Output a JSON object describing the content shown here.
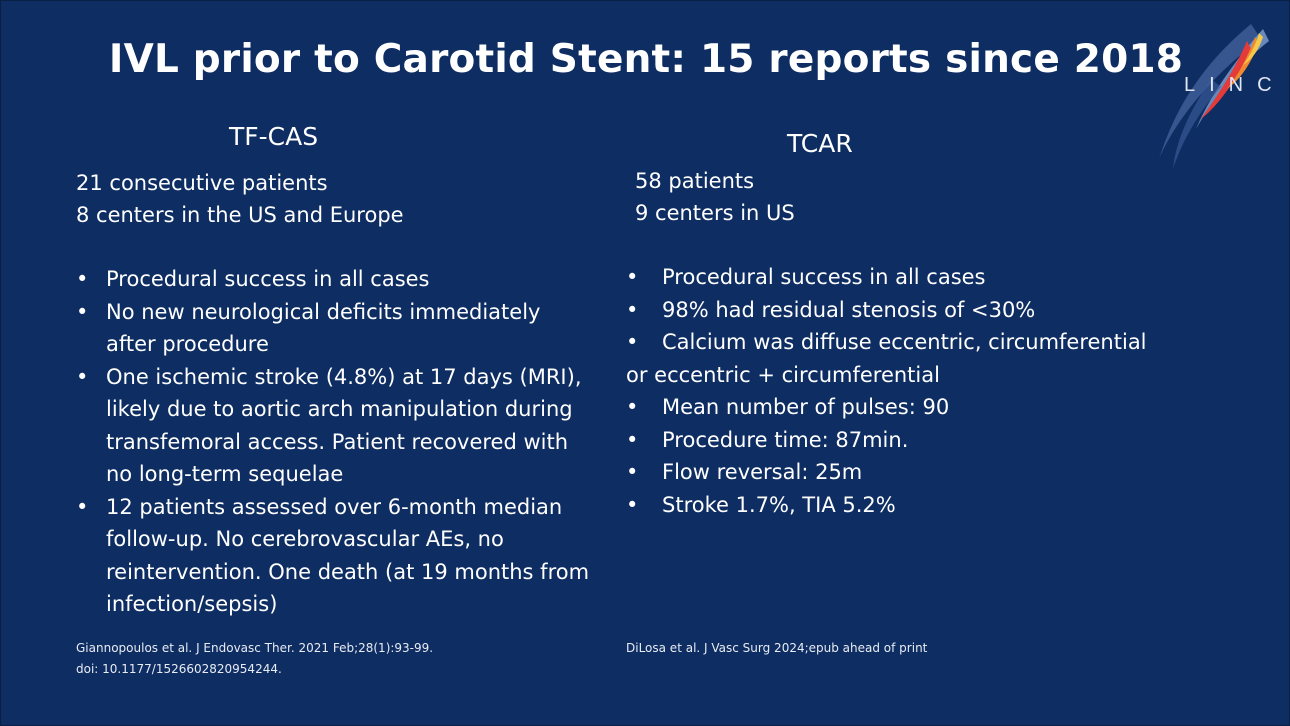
{
  "title": "IVL prior to Carotid Stent: 15 reports since 2018",
  "logo": {
    "text": "LINC",
    "icon": "linc-logo-icon"
  },
  "left": {
    "heading": "TF-CAS",
    "intro": [
      "21 consecutive patients",
      "8 centers in the US and Europe"
    ],
    "bullets": [
      "Procedural success in all cases",
      "No new neurological deficits immediately after procedure",
      "One ischemic stroke (4.8%) at 17 days (MRI), likely due to aortic arch manipulation during transfemoral access. Patient recovered with no long-term sequelae",
      "12 patients assessed over 6-month median follow-up. No cerebrovascular AEs, no reintervention. One death (at 19 months from infection/sepsis)"
    ],
    "reference": [
      "Giannopoulos et al. J Endovasc Ther. 2021 Feb;28(1):93-99.",
      "doi: 10.1177/1526602820954244."
    ]
  },
  "right": {
    "heading": "TCAR",
    "intro": [
      "58 patients",
      "9 centers in US"
    ],
    "bullets": [
      "Procedural success in all cases",
      "98% had residual stenosis of <30%",
      "Calcium was diffuse eccentric, circumferential",
      "Mean number of pulses: 90",
      "Procedure time: 87min.",
      "Flow reversal: 25m",
      "Stroke 1.7%, TIA 5.2%"
    ],
    "bullet_continuation": "or eccentric + circumferential",
    "reference": [
      "DiLosa et al. J Vasc Surg 2024;epub ahead of print"
    ]
  },
  "colors": {
    "background": "#0e2d62",
    "text": "#ffffff"
  }
}
